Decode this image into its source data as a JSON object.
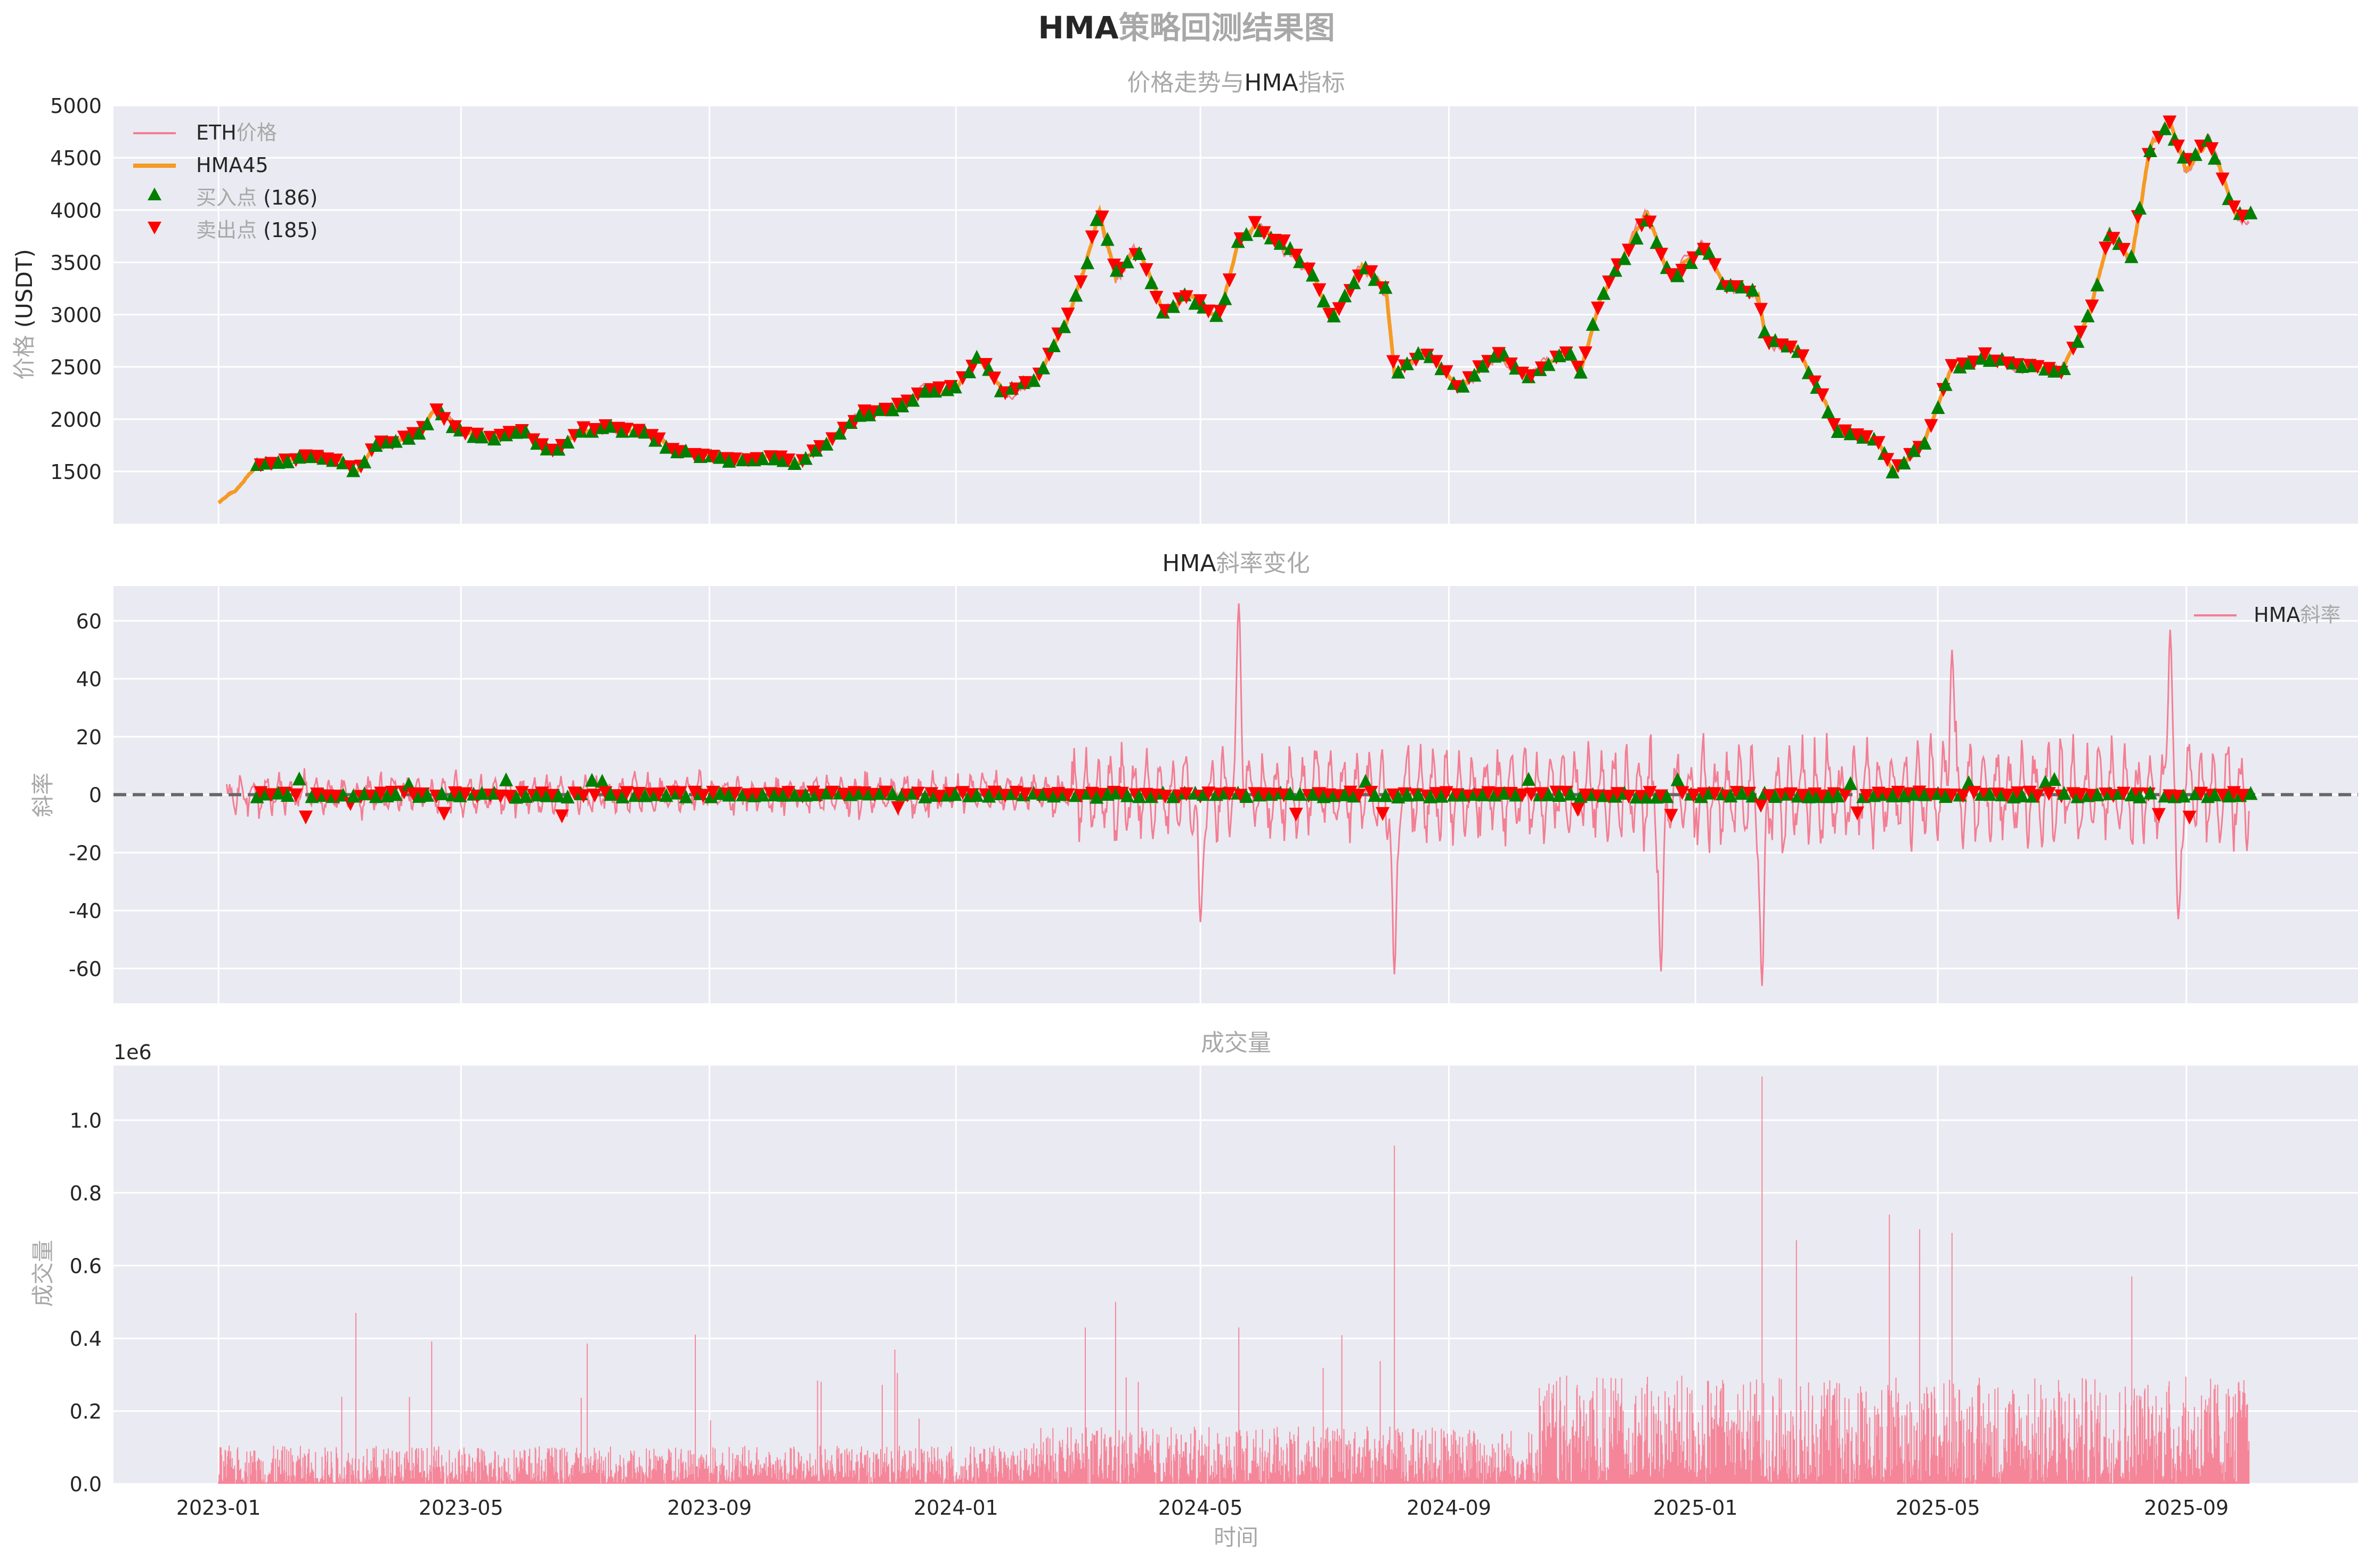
{
  "figure": {
    "suptitle_bold": "HMA",
    "suptitle_rest": "策略回测结果图"
  },
  "colors": {
    "background": "#eaeaf2",
    "grid": "#ffffff",
    "price_line": "#f37e93",
    "hma_line": "#f59a23",
    "buy_marker": "#008000",
    "sell_marker": "#ff0000",
    "zero_line": "#666666",
    "volume_bar": "#f77489"
  },
  "chart_data": [
    {
      "id": "price",
      "type": "line",
      "title_pre": "价格走势与",
      "title_mid": "HMA",
      "title_post": "指标",
      "ylabel_pre": "价格",
      "ylabel_post": " (USDT)",
      "ylim": [
        1000,
        5000
      ],
      "yticks": [
        1500,
        2000,
        2500,
        3000,
        3500,
        4000,
        4500,
        5000
      ],
      "legend": {
        "position": "top-left",
        "price_pre": "ETH",
        "price_post": "价格",
        "hma": "HMA45",
        "buy_pre": "买入点",
        "buy_post": " (186)",
        "sell_pre": "卖出点",
        "sell_post": " (185)"
      },
      "series_points": [
        [
          "2023-01-01",
          1200
        ],
        [
          "2023-01-10",
          1320
        ],
        [
          "2023-01-20",
          1560
        ],
        [
          "2023-02-01",
          1600
        ],
        [
          "2023-02-15",
          1640
        ],
        [
          "2023-02-25",
          1620
        ],
        [
          "2023-03-05",
          1590
        ],
        [
          "2023-03-10",
          1480
        ],
        [
          "2023-03-20",
          1760
        ],
        [
          "2023-04-01",
          1800
        ],
        [
          "2023-04-12",
          1900
        ],
        [
          "2023-04-18",
          2100
        ],
        [
          "2023-05-01",
          1880
        ],
        [
          "2023-05-15",
          1820
        ],
        [
          "2023-06-01",
          1880
        ],
        [
          "2023-06-15",
          1680
        ],
        [
          "2023-07-01",
          1900
        ],
        [
          "2023-07-15",
          1920
        ],
        [
          "2023-08-01",
          1860
        ],
        [
          "2023-08-15",
          1700
        ],
        [
          "2023-09-01",
          1650
        ],
        [
          "2023-09-15",
          1600
        ],
        [
          "2023-10-01",
          1650
        ],
        [
          "2023-10-15",
          1580
        ],
        [
          "2023-11-01",
          1800
        ],
        [
          "2023-11-15",
          2050
        ],
        [
          "2023-12-01",
          2100
        ],
        [
          "2023-12-15",
          2250
        ],
        [
          "2024-01-01",
          2300
        ],
        [
          "2024-01-12",
          2600
        ],
        [
          "2024-01-25",
          2250
        ],
        [
          "2024-02-10",
          2400
        ],
        [
          "2024-02-25",
          2950
        ],
        [
          "2024-03-05",
          3450
        ],
        [
          "2024-03-12",
          4000
        ],
        [
          "2024-03-20",
          3400
        ],
        [
          "2024-04-01",
          3600
        ],
        [
          "2024-04-13",
          3000
        ],
        [
          "2024-04-25",
          3200
        ],
        [
          "2024-05-10",
          2950
        ],
        [
          "2024-05-20",
          3700
        ],
        [
          "2024-05-28",
          3850
        ],
        [
          "2024-06-10",
          3700
        ],
        [
          "2024-06-25",
          3400
        ],
        [
          "2024-07-05",
          2950
        ],
        [
          "2024-07-20",
          3450
        ],
        [
          "2024-08-01",
          3250
        ],
        [
          "2024-08-05",
          2450
        ],
        [
          "2024-08-20",
          2650
        ],
        [
          "2024-09-06",
          2300
        ],
        [
          "2024-09-25",
          2650
        ],
        [
          "2024-10-10",
          2400
        ],
        [
          "2024-10-30",
          2650
        ],
        [
          "2024-11-05",
          2450
        ],
        [
          "2024-11-15",
          3150
        ],
        [
          "2024-12-01",
          3700
        ],
        [
          "2024-12-08",
          3950
        ],
        [
          "2024-12-20",
          3350
        ],
        [
          "2025-01-06",
          3650
        ],
        [
          "2025-01-15",
          3300
        ],
        [
          "2025-02-01",
          3200
        ],
        [
          "2025-02-05",
          2750
        ],
        [
          "2025-02-20",
          2700
        ],
        [
          "2025-03-05",
          2200
        ],
        [
          "2025-03-12",
          1900
        ],
        [
          "2025-04-01",
          1800
        ],
        [
          "2025-04-09",
          1500
        ],
        [
          "2025-04-25",
          1800
        ],
        [
          "2025-05-08",
          2500
        ],
        [
          "2025-05-25",
          2600
        ],
        [
          "2025-06-15",
          2500
        ],
        [
          "2025-07-01",
          2450
        ],
        [
          "2025-07-15",
          3000
        ],
        [
          "2025-07-25",
          3750
        ],
        [
          "2025-08-05",
          3550
        ],
        [
          "2025-08-14",
          4600
        ],
        [
          "2025-08-24",
          4850
        ],
        [
          "2025-09-01",
          4400
        ],
        [
          "2025-09-12",
          4650
        ],
        [
          "2025-09-26",
          3950
        ],
        [
          "2025-10-02",
          4000
        ]
      ]
    },
    {
      "id": "slope",
      "type": "line",
      "title_pre": "HMA",
      "title_post": "斜率变化",
      "ylabel": "斜率",
      "ylim": [
        -72,
        72
      ],
      "yticks": [
        -60,
        -40,
        -20,
        0,
        20,
        40,
        60
      ],
      "zero_line": true,
      "legend": {
        "position": "top-right",
        "label_pre": "HMA",
        "label_post": "斜率"
      },
      "notable_extremes": [
        [
          "2024-05-20",
          66
        ],
        [
          "2024-08-05",
          -62
        ],
        [
          "2024-12-15",
          -61
        ],
        [
          "2025-02-03",
          -66
        ],
        [
          "2025-08-24",
          57
        ],
        [
          "2025-05-08",
          50
        ],
        [
          "2025-08-28",
          -43
        ],
        [
          "2024-05-01",
          -44
        ]
      ]
    },
    {
      "id": "volume",
      "type": "bar",
      "title": "成交量",
      "ylabel": "成交量",
      "xlabel": "时间",
      "offset_label": "1e6",
      "ylim": [
        0,
        1.15
      ],
      "yticks": [
        0.0,
        0.2,
        0.4,
        0.6,
        0.8,
        1.0
      ],
      "spikes": [
        [
          "2023-03-10",
          0.47
        ],
        [
          "2023-08-25",
          0.41
        ],
        [
          "2024-03-05",
          0.43
        ],
        [
          "2024-03-20",
          0.5
        ],
        [
          "2024-05-20",
          0.43
        ],
        [
          "2024-08-05",
          0.93
        ],
        [
          "2025-02-03",
          1.12
        ],
        [
          "2025-04-07",
          0.74
        ],
        [
          "2025-04-22",
          0.7
        ],
        [
          "2025-05-08",
          0.69
        ],
        [
          "2025-02-20",
          0.67
        ],
        [
          "2025-08-05",
          0.57
        ]
      ]
    }
  ],
  "x_axis": {
    "tick_labels": [
      "2023-01",
      "2023-05",
      "2023-09",
      "2024-01",
      "2024-05",
      "2024-09",
      "2025-01",
      "2025-05",
      "2025-09"
    ]
  }
}
